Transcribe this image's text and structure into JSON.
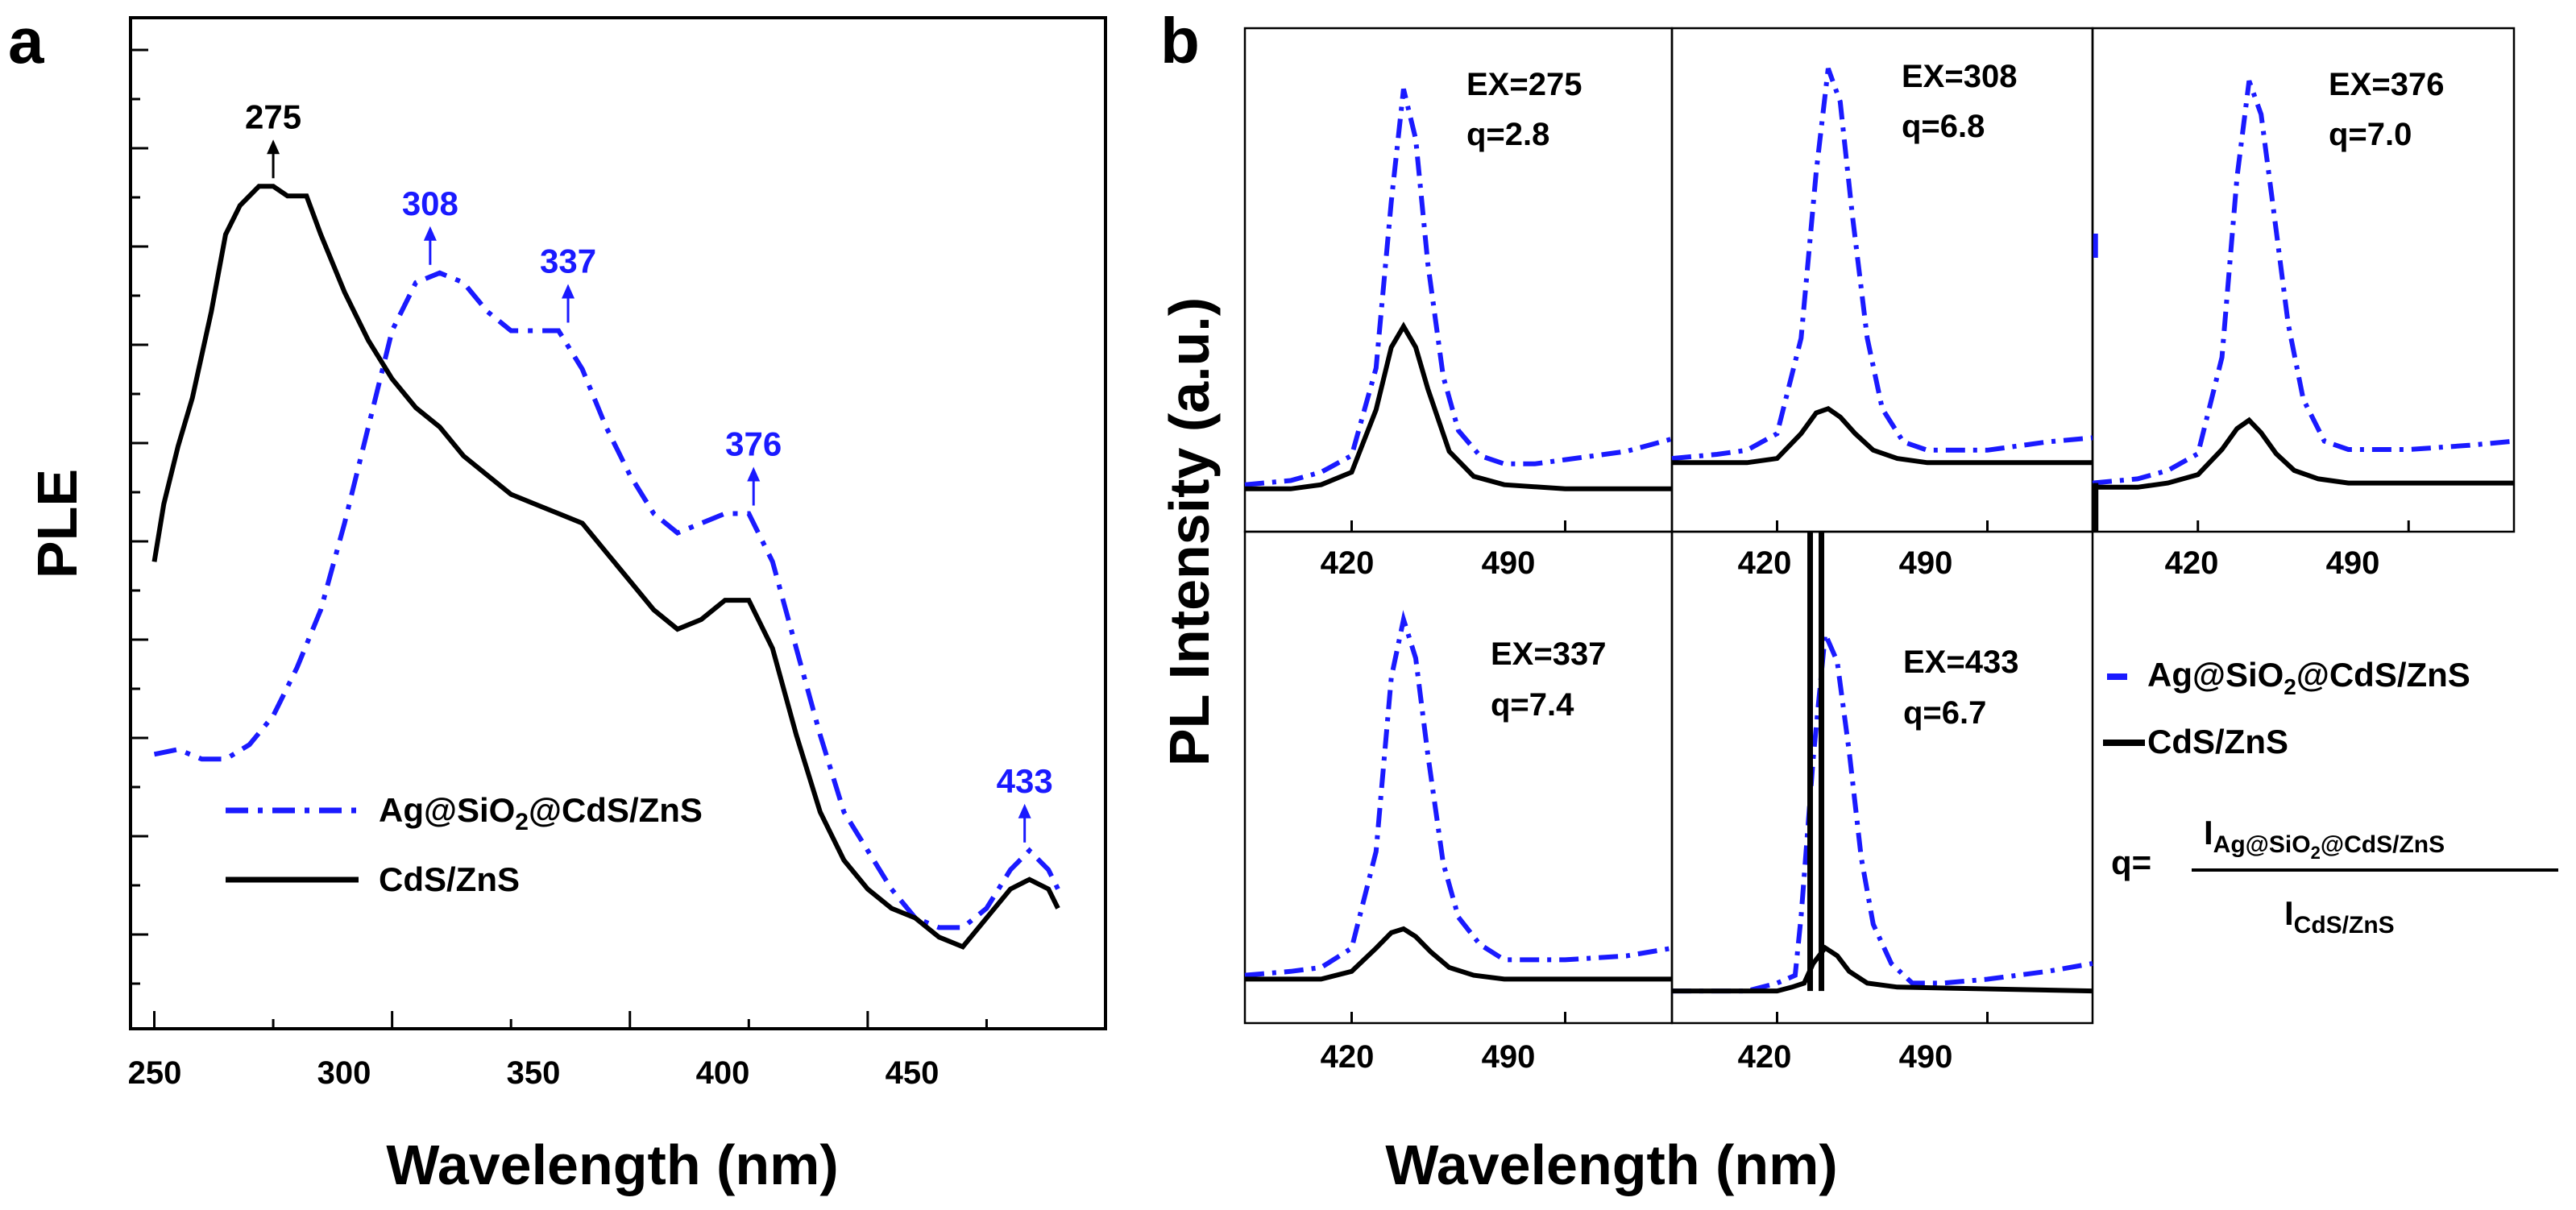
{
  "colors": {
    "blue": "#1a1aff",
    "black": "#000000"
  },
  "panel_a_label": "a",
  "panel_b_label": "b",
  "chart_data": [
    {
      "type": "line",
      "panel": "a",
      "xlabel": "Wavelength (nm)",
      "ylabel": "PLE",
      "xlim": [
        245,
        450
      ],
      "ylim": [
        0,
        100
      ],
      "xticks": [
        "250",
        "300",
        "350",
        "400",
        "450"
      ],
      "legend_position": "lower-left",
      "series": [
        {
          "name": "Ag@SiO₂@CdS/ZnS",
          "style": "dash-dot",
          "color": "#1a1aff",
          "points": [
            [
              250,
              26
            ],
            [
              255,
              26.5
            ],
            [
              260,
              25.5
            ],
            [
              265,
              25.5
            ],
            [
              270,
              27
            ],
            [
              275,
              30
            ],
            [
              280,
              35
            ],
            [
              285,
              41
            ],
            [
              290,
              50
            ],
            [
              295,
              60
            ],
            [
              300,
              70
            ],
            [
              305,
              75
            ],
            [
              310,
              76
            ],
            [
              315,
              75
            ],
            [
              320,
              72
            ],
            [
              325,
              70
            ],
            [
              330,
              70
            ],
            [
              335,
              70
            ],
            [
              340,
              66
            ],
            [
              345,
              60
            ],
            [
              350,
              55
            ],
            [
              355,
              51
            ],
            [
              360,
              49
            ],
            [
              365,
              50
            ],
            [
              370,
              51
            ],
            [
              375,
              51
            ],
            [
              380,
              46
            ],
            [
              385,
              37
            ],
            [
              390,
              28
            ],
            [
              395,
              20
            ],
            [
              400,
              16
            ],
            [
              405,
              12
            ],
            [
              410,
              9
            ],
            [
              415,
              8
            ],
            [
              420,
              8
            ],
            [
              425,
              10
            ],
            [
              430,
              14
            ],
            [
              434,
              16
            ],
            [
              438,
              14
            ],
            [
              440,
              12
            ]
          ]
        },
        {
          "name": "CdS/ZnS",
          "style": "solid",
          "color": "#000000",
          "points": [
            [
              250,
              46
            ],
            [
              252,
              52
            ],
            [
              255,
              58
            ],
            [
              258,
              63
            ],
            [
              262,
              72
            ],
            [
              265,
              80
            ],
            [
              268,
              83
            ],
            [
              272,
              85
            ],
            [
              275,
              85
            ],
            [
              278,
              84
            ],
            [
              282,
              84
            ],
            [
              285,
              80
            ],
            [
              290,
              74
            ],
            [
              295,
              69
            ],
            [
              300,
              65
            ],
            [
              305,
              62
            ],
            [
              310,
              60
            ],
            [
              315,
              57
            ],
            [
              320,
              55
            ],
            [
              325,
              53
            ],
            [
              330,
              52
            ],
            [
              335,
              51
            ],
            [
              340,
              50
            ],
            [
              345,
              47
            ],
            [
              350,
              44
            ],
            [
              355,
              41
            ],
            [
              360,
              39
            ],
            [
              365,
              40
            ],
            [
              370,
              42
            ],
            [
              375,
              42
            ],
            [
              380,
              37
            ],
            [
              385,
              28
            ],
            [
              390,
              20
            ],
            [
              395,
              15
            ],
            [
              400,
              12
            ],
            [
              405,
              10
            ],
            [
              410,
              9
            ],
            [
              415,
              7
            ],
            [
              420,
              6
            ],
            [
              425,
              9
            ],
            [
              430,
              12
            ],
            [
              434,
              13
            ],
            [
              438,
              12
            ],
            [
              440,
              10
            ]
          ]
        }
      ],
      "annotations": [
        {
          "x": 275,
          "y": 85,
          "label": "275",
          "color": "black"
        },
        {
          "x": 308,
          "y": 76,
          "label": "308",
          "color": "blue"
        },
        {
          "x": 337,
          "y": 70,
          "label": "337",
          "color": "blue"
        },
        {
          "x": 376,
          "y": 51,
          "label": "376",
          "color": "blue"
        },
        {
          "x": 433,
          "y": 16,
          "label": "433",
          "color": "blue"
        }
      ]
    },
    {
      "type": "line",
      "panel": "b",
      "xlabel": "Wavelength (nm)",
      "ylabel": "PL Intensity (a.u.)",
      "xlim": [
        385,
        525
      ],
      "ylim": [
        0,
        100
      ],
      "xticks": [
        "420",
        "490"
      ],
      "subplots": [
        {
          "ex_label": "EX=275",
          "q_label": "q=2.8",
          "blue": [
            [
              385,
              2
            ],
            [
              400,
              3
            ],
            [
              410,
              5
            ],
            [
              420,
              9
            ],
            [
              428,
              30
            ],
            [
              433,
              70
            ],
            [
              437,
              97
            ],
            [
              441,
              85
            ],
            [
              445,
              55
            ],
            [
              450,
              28
            ],
            [
              455,
              15
            ],
            [
              462,
              9
            ],
            [
              470,
              7
            ],
            [
              480,
              7
            ],
            [
              490,
              8
            ],
            [
              500,
              9
            ],
            [
              510,
              10
            ],
            [
              520,
              12
            ],
            [
              525,
              13
            ]
          ],
          "black": [
            [
              385,
              1
            ],
            [
              400,
              1
            ],
            [
              410,
              2
            ],
            [
              420,
              5
            ],
            [
              428,
              20
            ],
            [
              433,
              35
            ],
            [
              437,
              40
            ],
            [
              441,
              35
            ],
            [
              445,
              25
            ],
            [
              452,
              10
            ],
            [
              460,
              4
            ],
            [
              470,
              2
            ],
            [
              490,
              1
            ],
            [
              525,
              1
            ]
          ]
        },
        {
          "ex_label": "EX=308",
          "q_label": "q=6.8",
          "blue": [
            [
              385,
              6
            ],
            [
              400,
              7
            ],
            [
              410,
              8
            ],
            [
              420,
              12
            ],
            [
              428,
              35
            ],
            [
              433,
              75
            ],
            [
              437,
              100
            ],
            [
              441,
              92
            ],
            [
              445,
              65
            ],
            [
              450,
              35
            ],
            [
              455,
              18
            ],
            [
              462,
              10
            ],
            [
              470,
              8
            ],
            [
              490,
              8
            ],
            [
              510,
              10
            ],
            [
              525,
              11
            ]
          ],
          "black": [
            [
              385,
              5
            ],
            [
              400,
              5
            ],
            [
              410,
              5
            ],
            [
              420,
              6
            ],
            [
              428,
              12
            ],
            [
              433,
              17
            ],
            [
              437,
              18
            ],
            [
              441,
              16
            ],
            [
              446,
              12
            ],
            [
              452,
              8
            ],
            [
              460,
              6
            ],
            [
              470,
              5
            ],
            [
              525,
              5
            ]
          ]
        },
        {
          "ex_label": "EX=376",
          "q_label": "q=7.0",
          "blue": [
            [
              385,
              2
            ],
            [
              400,
              3
            ],
            [
              410,
              5
            ],
            [
              420,
              9
            ],
            [
              428,
              32
            ],
            [
              433,
              75
            ],
            [
              437,
              98
            ],
            [
              441,
              90
            ],
            [
              445,
              68
            ],
            [
              450,
              40
            ],
            [
              455,
              22
            ],
            [
              462,
              12
            ],
            [
              470,
              10
            ],
            [
              490,
              10
            ],
            [
              510,
              11
            ],
            [
              525,
              12
            ]
          ],
          "black": [
            [
              385,
              1
            ],
            [
              400,
              1
            ],
            [
              410,
              2
            ],
            [
              420,
              4
            ],
            [
              428,
              10
            ],
            [
              433,
              15
            ],
            [
              437,
              17
            ],
            [
              441,
              14
            ],
            [
              446,
              9
            ],
            [
              452,
              5
            ],
            [
              460,
              3
            ],
            [
              470,
              2
            ],
            [
              525,
              2
            ]
          ],
          "spike": {
            "x": 386,
            "y_from": 2,
            "y_to": 75
          }
        },
        {
          "ex_label": "EX=337",
          "q_label": "q=7.4",
          "blue": [
            [
              385,
              3
            ],
            [
              400,
              4
            ],
            [
              410,
              5
            ],
            [
              420,
              10
            ],
            [
              428,
              35
            ],
            [
              433,
              80
            ],
            [
              437,
              95
            ],
            [
              441,
              85
            ],
            [
              445,
              60
            ],
            [
              450,
              32
            ],
            [
              455,
              18
            ],
            [
              462,
              11
            ],
            [
              470,
              7
            ],
            [
              490,
              7
            ],
            [
              510,
              8
            ],
            [
              525,
              10
            ]
          ],
          "black": [
            [
              385,
              2
            ],
            [
              400,
              2
            ],
            [
              410,
              2
            ],
            [
              420,
              4
            ],
            [
              428,
              10
            ],
            [
              433,
              14
            ],
            [
              437,
              15
            ],
            [
              441,
              13
            ],
            [
              446,
              9
            ],
            [
              452,
              5
            ],
            [
              460,
              3
            ],
            [
              470,
              2
            ],
            [
              525,
              2
            ]
          ]
        },
        {
          "ex_label": "EX=433",
          "q_label": "q=6.7",
          "blue": [
            [
              385,
              1
            ],
            [
              400,
              1
            ],
            [
              410,
              1
            ],
            [
              420,
              3
            ],
            [
              426,
              5
            ],
            [
              428,
              20
            ],
            [
              432,
              60
            ],
            [
              436,
              92
            ],
            [
              440,
              85
            ],
            [
              444,
              62
            ],
            [
              448,
              35
            ],
            [
              452,
              18
            ],
            [
              458,
              8
            ],
            [
              465,
              3
            ],
            [
              475,
              3
            ],
            [
              490,
              4
            ],
            [
              510,
              6
            ],
            [
              525,
              8
            ]
          ],
          "black": [
            [
              385,
              1
            ],
            [
              410,
              1
            ],
            [
              420,
              1
            ],
            [
              425,
              2
            ],
            [
              429,
              3
            ],
            [
              432,
              8
            ],
            [
              436,
              12
            ],
            [
              440,
              10
            ],
            [
              444,
              6
            ],
            [
              450,
              3
            ],
            [
              460,
              2
            ],
            [
              525,
              1
            ]
          ],
          "spike": {
            "x": 431,
            "y_from": 1,
            "y_to": 120
          }
        }
      ],
      "legend": {
        "series": [
          "Ag@SiO₂@CdS/ZnS",
          "CdS/ZnS"
        ],
        "position": "right"
      },
      "formula": {
        "lhs": "q=",
        "numerator": "I",
        "numerator_sub": "Ag@SiO",
        "numerator_sub2": "2",
        "numerator_sub_rest": "@CdS/ZnS",
        "denominator": "I",
        "denominator_sub": "CdS/ZnS"
      }
    }
  ]
}
